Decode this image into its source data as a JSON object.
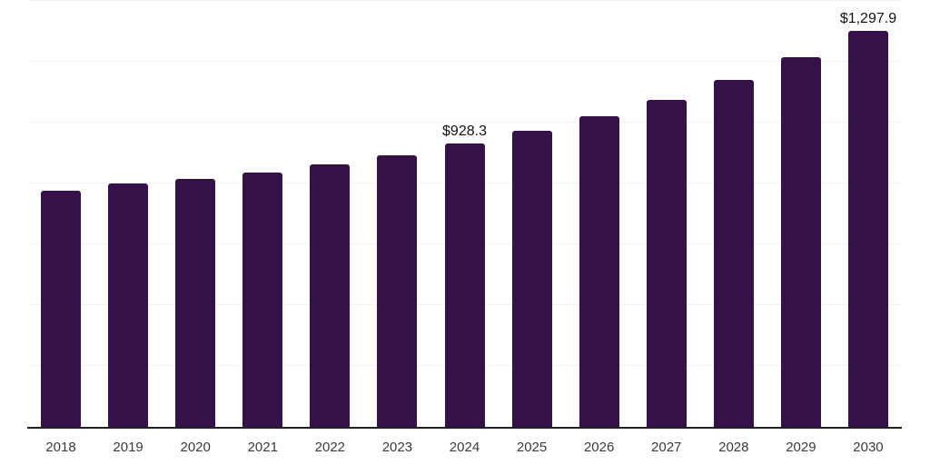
{
  "chart_theme": {
    "background": "#ffffff",
    "bar_color": "#341148",
    "grid_color": "#f2f2f4",
    "axis_color": "#1f1f1f",
    "tick_label_color": "#3b3b3b",
    "annotation_color": "#111111"
  },
  "chart_data": {
    "type": "bar",
    "title": "",
    "xlabel": "",
    "ylabel": "",
    "categories": [
      "2018",
      "2019",
      "2020",
      "2021",
      "2022",
      "2023",
      "2024",
      "2025",
      "2026",
      "2027",
      "2028",
      "2029",
      "2030"
    ],
    "values": [
      775,
      797,
      814,
      833,
      861,
      892,
      928.3,
      972,
      1020,
      1073,
      1139,
      1213,
      1297.9
    ],
    "value_prefix": "$",
    "ylim": [
      0,
      1400
    ],
    "grid_step": 200,
    "gridlines": "horizontal",
    "legend": "none",
    "y_tick_labels": "hidden",
    "annotations": [
      {
        "category": "2024",
        "text": "$928.3"
      },
      {
        "category": "2030",
        "text": "$1,297.9"
      }
    ]
  }
}
